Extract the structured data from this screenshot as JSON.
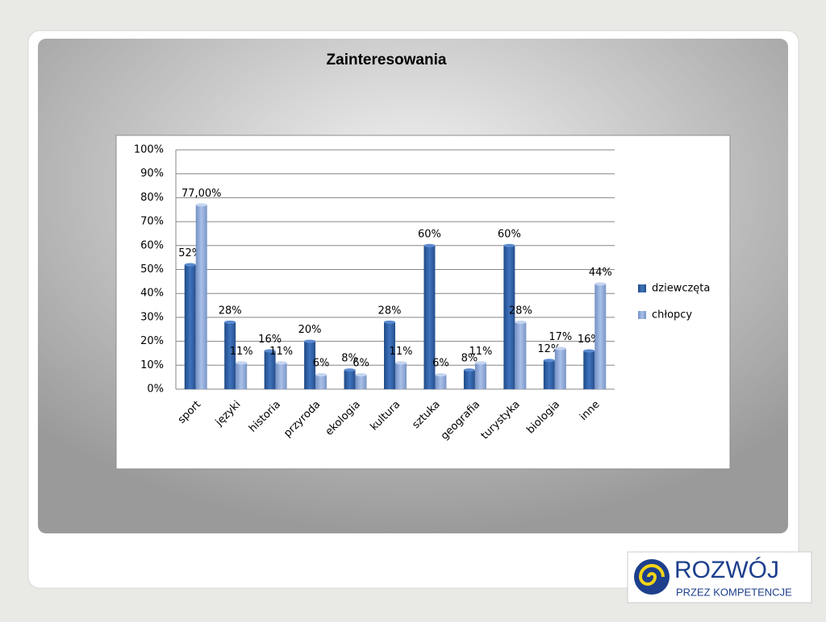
{
  "chart_data": {
    "type": "bar",
    "title": "Zainteresowania",
    "categories": [
      "sport",
      "języki",
      "historia",
      "przyroda",
      "ekologia",
      "kultura",
      "sztuka",
      "geografia",
      "turystyka",
      "biologia",
      "inne"
    ],
    "series": [
      {
        "name": "dziewczęta",
        "color": "#3465a8",
        "values": [
          52,
          28,
          16,
          20,
          8,
          28,
          60,
          8,
          60,
          12,
          16
        ],
        "value_labels": [
          "52%",
          "28%",
          "16%",
          "20%",
          "8%",
          "28%",
          "60%",
          "8%",
          "60%",
          "12%",
          "16%"
        ]
      },
      {
        "name": "chłopcy",
        "color": "#8fa9d8",
        "values": [
          77,
          11,
          11,
          6,
          6,
          11,
          6,
          11,
          28,
          17,
          44
        ],
        "value_labels": [
          "77,00%",
          "11%",
          "11%",
          "6%",
          "6%",
          "11%",
          "6%",
          "11%",
          "28%",
          "17%",
          "44%"
        ]
      }
    ],
    "ylim": [
      0,
      100
    ],
    "yticks": [
      {
        "value": 0,
        "label": "0%"
      },
      {
        "value": 10,
        "label": "10%"
      },
      {
        "value": 20,
        "label": "20%"
      },
      {
        "value": 30,
        "label": "30%"
      },
      {
        "value": 40,
        "label": "40%"
      },
      {
        "value": 50,
        "label": "50%"
      },
      {
        "value": 60,
        "label": "60%"
      },
      {
        "value": 70,
        "label": "70%"
      },
      {
        "value": 80,
        "label": "80%"
      },
      {
        "value": 90,
        "label": "90%"
      },
      {
        "value": 100,
        "label": "100%"
      }
    ],
    "grid": true,
    "legend": "right"
  },
  "logo": {
    "title": "ROZWÓJ",
    "subtitle": "PRZEZ KOMPETENCJE"
  }
}
